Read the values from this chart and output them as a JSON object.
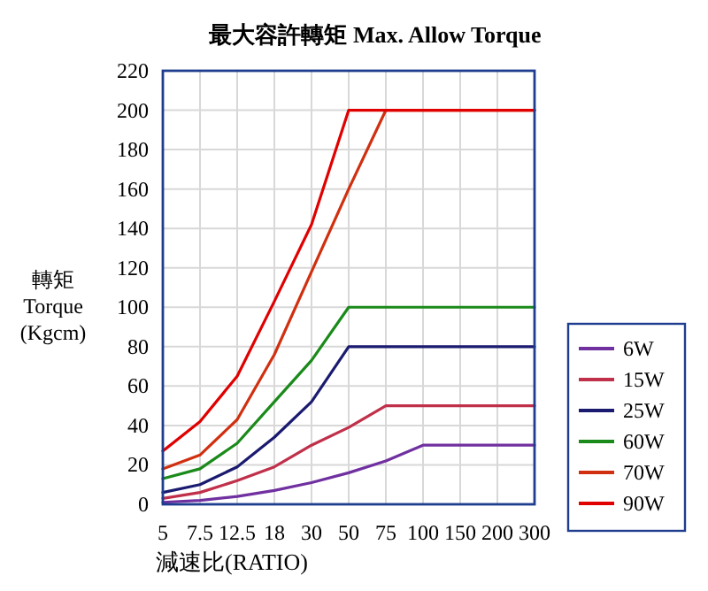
{
  "chart_data": {
    "type": "line",
    "title": "最大容許轉矩 Max. Allow Torque",
    "xlabel": "減速比(RATIO)",
    "ylabel": "轉矩 Torque (Kgcm)",
    "categories": [
      "5",
      "7.5",
      "12.5",
      "18",
      "30",
      "50",
      "75",
      "100",
      "150",
      "200",
      "300"
    ],
    "ylim": [
      0,
      220
    ],
    "yticks": [
      0,
      20,
      40,
      60,
      80,
      100,
      120,
      140,
      160,
      180,
      200,
      220
    ],
    "grid": true,
    "legend": "right",
    "marker": "none",
    "line_style": "solid",
    "series": [
      {
        "name": "6W",
        "color": "#7030a0",
        "values": [
          1,
          2,
          4,
          7,
          11,
          16,
          22,
          30,
          30,
          30,
          30
        ]
      },
      {
        "name": "15W",
        "color": "#c0304a",
        "values": [
          3,
          6,
          12,
          19,
          30,
          39,
          50,
          50,
          50,
          50,
          50
        ]
      },
      {
        "name": "25W",
        "color": "#1a1a70",
        "values": [
          6,
          10,
          19,
          34,
          52,
          80,
          80,
          80,
          80,
          80,
          80
        ]
      },
      {
        "name": "60W",
        "color": "#1a8a1a",
        "values": [
          13,
          18,
          31,
          52,
          73,
          100,
          100,
          100,
          100,
          100,
          100
        ]
      },
      {
        "name": "70W",
        "color": "#d03010",
        "values": [
          18,
          25,
          43,
          76,
          118,
          160,
          200,
          200,
          200,
          200,
          200
        ]
      },
      {
        "name": "90W",
        "color": "#e00000",
        "values": [
          27,
          42,
          65,
          103,
          142,
          200,
          200,
          200,
          200,
          200,
          200
        ]
      }
    ]
  }
}
